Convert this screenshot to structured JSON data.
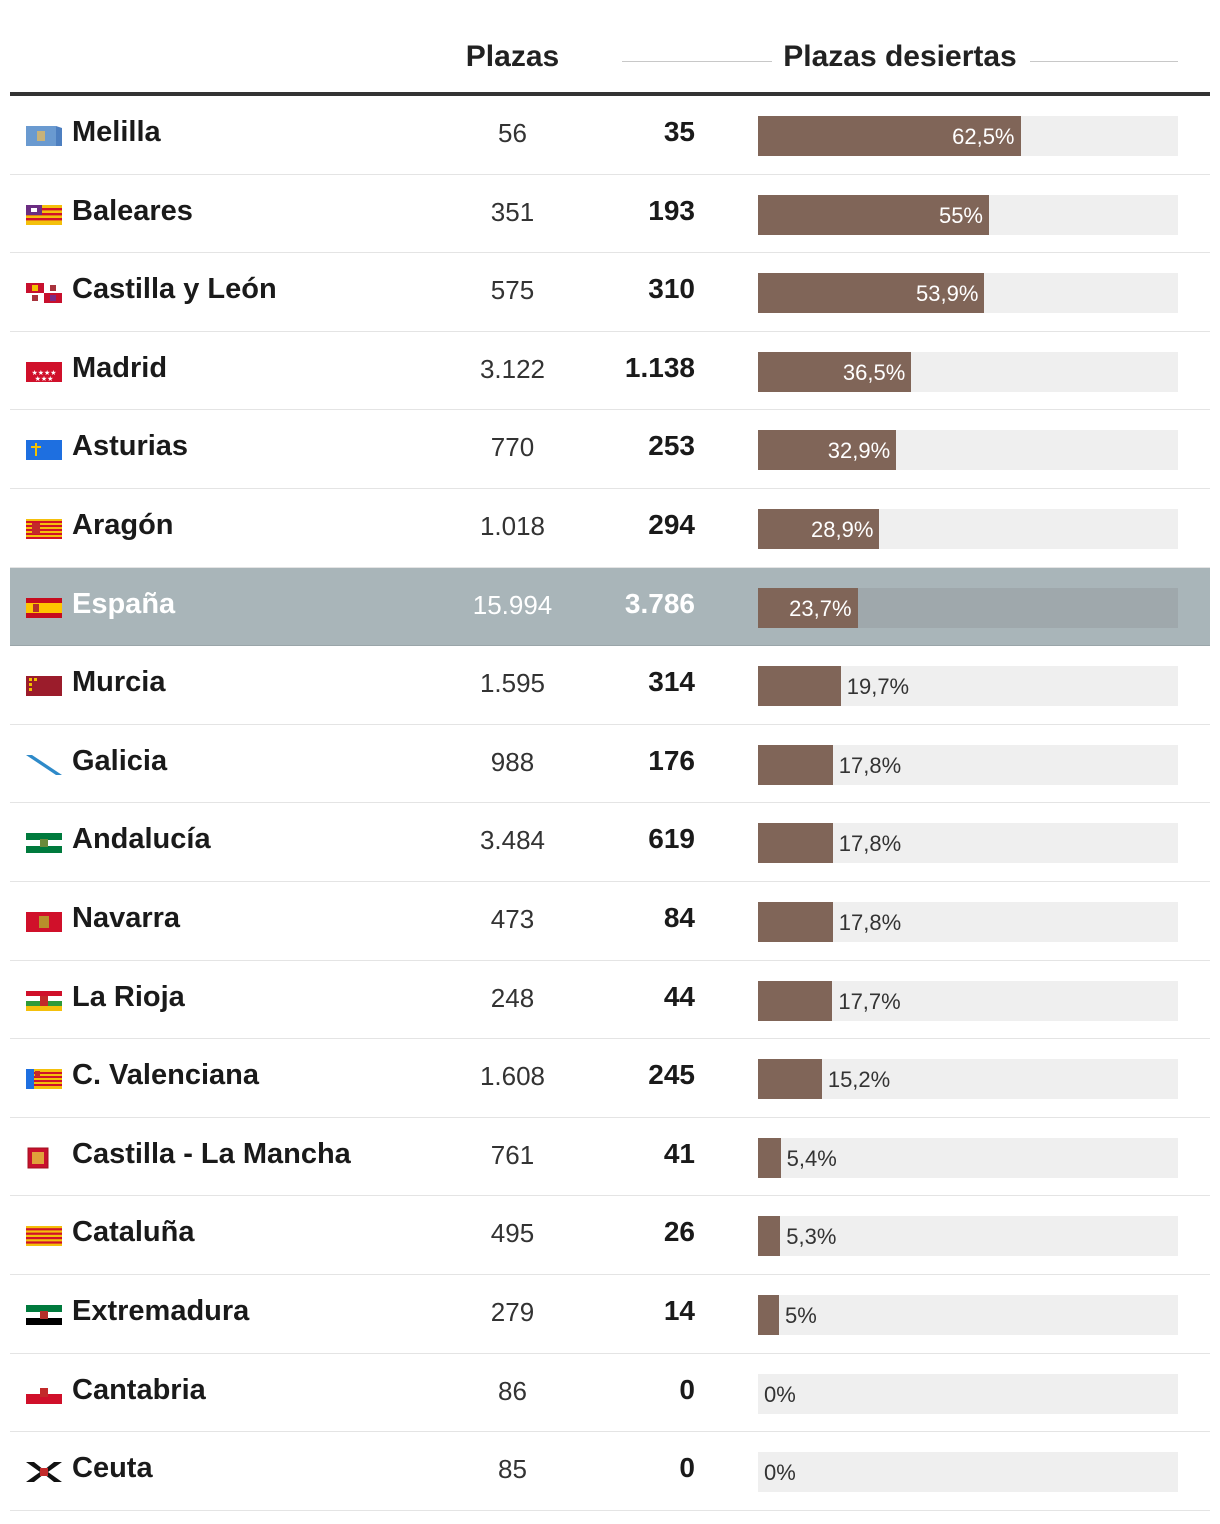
{
  "header": {
    "plazas_label": "Plazas",
    "desiertas_label": "Plazas desiertas"
  },
  "colors": {
    "bar": "#806558",
    "track": "#efefef",
    "highlight_row": "#a9b5b9"
  },
  "chart_data": {
    "type": "bar",
    "columns": [
      "",
      "Plazas",
      "Plazas desiertas",
      ""
    ],
    "xlim": [
      0,
      100
    ],
    "rows": [
      {
        "name": "Melilla",
        "flag": "melilla-flag",
        "plazas": "56",
        "desiertas": "35",
        "pct": 62.5,
        "pct_label": "62,5%"
      },
      {
        "name": "Baleares",
        "flag": "baleares-flag",
        "plazas": "351",
        "desiertas": "193",
        "pct": 55,
        "pct_label": "55%"
      },
      {
        "name": "Castilla y León",
        "flag": "castilla-leon-flag",
        "plazas": "575",
        "desiertas": "310",
        "pct": 53.9,
        "pct_label": "53,9%"
      },
      {
        "name": "Madrid",
        "flag": "madrid-flag",
        "plazas": "3.122",
        "desiertas": "1.138",
        "pct": 36.5,
        "pct_label": "36,5%"
      },
      {
        "name": "Asturias",
        "flag": "asturias-flag",
        "plazas": "770",
        "desiertas": "253",
        "pct": 32.9,
        "pct_label": "32,9%"
      },
      {
        "name": "Aragón",
        "flag": "aragon-flag",
        "plazas": "1.018",
        "desiertas": "294",
        "pct": 28.9,
        "pct_label": "28,9%"
      },
      {
        "name": "España",
        "flag": "espana-flag",
        "plazas": "15.994",
        "desiertas": "3.786",
        "pct": 23.7,
        "pct_label": "23,7%",
        "highlight": true
      },
      {
        "name": "Murcia",
        "flag": "murcia-flag",
        "plazas": "1.595",
        "desiertas": "314",
        "pct": 19.7,
        "pct_label": "19,7%"
      },
      {
        "name": "Galicia",
        "flag": "galicia-flag",
        "plazas": "988",
        "desiertas": "176",
        "pct": 17.8,
        "pct_label": "17,8%"
      },
      {
        "name": "Andalucía",
        "flag": "andalucia-flag",
        "plazas": "3.484",
        "desiertas": "619",
        "pct": 17.8,
        "pct_label": "17,8%"
      },
      {
        "name": "Navarra",
        "flag": "navarra-flag",
        "plazas": "473",
        "desiertas": "84",
        "pct": 17.8,
        "pct_label": "17,8%"
      },
      {
        "name": "La Rioja",
        "flag": "la-rioja-flag",
        "plazas": "248",
        "desiertas": "44",
        "pct": 17.7,
        "pct_label": "17,7%"
      },
      {
        "name": "C. Valenciana",
        "flag": "valenciana-flag",
        "plazas": "1.608",
        "desiertas": "245",
        "pct": 15.2,
        "pct_label": "15,2%"
      },
      {
        "name": "Castilla - La Mancha",
        "flag": "castilla-la-mancha-flag",
        "plazas": "761",
        "desiertas": "41",
        "pct": 5.4,
        "pct_label": "5,4%"
      },
      {
        "name": "Cataluña",
        "flag": "cataluna-flag",
        "plazas": "495",
        "desiertas": "26",
        "pct": 5.3,
        "pct_label": "5,3%"
      },
      {
        "name": "Extremadura",
        "flag": "extremadura-flag",
        "plazas": "279",
        "desiertas": "14",
        "pct": 5,
        "pct_label": "5%"
      },
      {
        "name": "Cantabria",
        "flag": "cantabria-flag",
        "plazas": "86",
        "desiertas": "0",
        "pct": 0,
        "pct_label": "0%"
      },
      {
        "name": "Ceuta",
        "flag": "ceuta-flag",
        "plazas": "85",
        "desiertas": "0",
        "pct": 0,
        "pct_label": "0%"
      }
    ]
  }
}
